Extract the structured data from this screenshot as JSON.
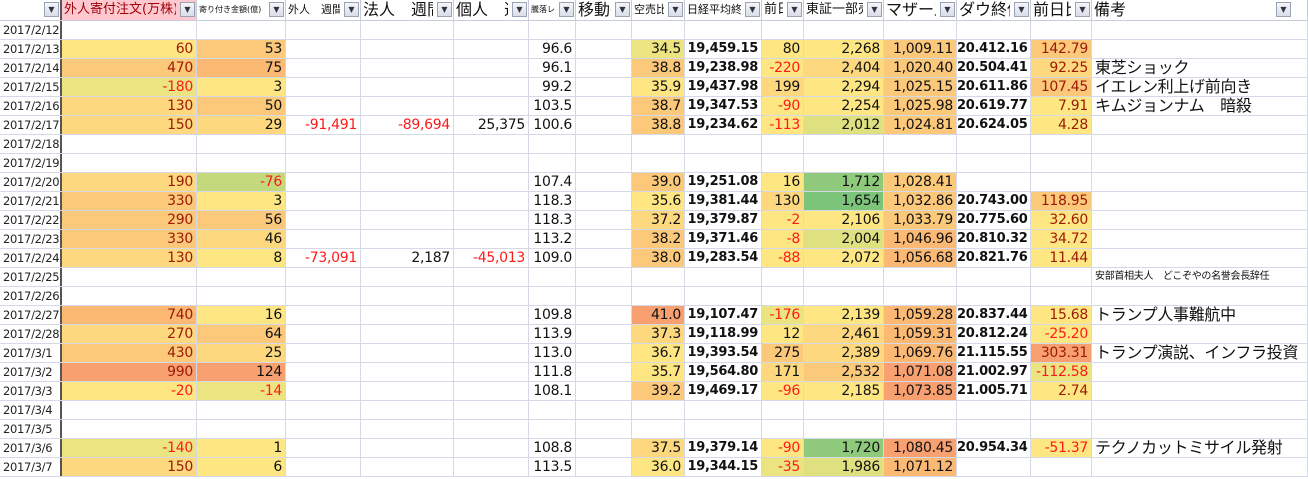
{
  "palette": {
    "Y": "#fee783",
    "YO": "#fdd87e",
    "O": "#fcc87a",
    "OO": "#fbb974",
    "R": "#f9a070",
    "YG": "#ece381",
    "YG2": "#dfe07f",
    "G1": "#c3d97c",
    "G2": "#8fca7c",
    "G3": "#7cc47a"
  },
  "text_colors": {
    "negative": "#ff1a1a",
    "highlight": "#9c1a06",
    "header_highlight_bg": "#ffc7ce"
  },
  "headers": [
    "",
    "外人寄付注文(万株)",
    "寄り付き金額(億)",
    "外人　週間差",
    "法人　週間",
    "個人　週",
    "騰落レシオ",
    "移動平",
    "空売比率",
    "日経平均終値",
    "前日",
    "東証一部売",
    "マザーズ",
    "ダウ終値",
    "前日比",
    "備考"
  ],
  "rows": [
    {
      "date": "2017/2/12",
      "cells": [
        "",
        "",
        "",
        "",
        "",
        "",
        "",
        "",
        "",
        "",
        "",
        "",
        "",
        "",
        ""
      ],
      "fills": [
        "",
        "",
        "",
        "",
        "",
        "",
        "",
        "",
        "",
        "",
        "",
        "",
        "",
        "",
        ""
      ]
    },
    {
      "date": "2017/2/13",
      "cells": [
        "60",
        "53",
        "",
        "",
        "",
        "96.6",
        "",
        "34.5",
        "19,459.15",
        "80",
        "2,268",
        "1,009.11",
        "20.412.16",
        "142.79",
        ""
      ],
      "fills": [
        "Y",
        "O",
        "",
        "",
        "",
        "",
        "",
        "YG",
        "",
        "Y",
        "Y",
        "O",
        "",
        "O",
        ""
      ]
    },
    {
      "date": "2017/2/14",
      "cells": [
        "470",
        "75",
        "",
        "",
        "",
        "96.1",
        "",
        "38.8",
        "19,238.98",
        "-220",
        "2,404",
        "1,020.40",
        "20.504.41",
        "92.25",
        "東芝ショック"
      ],
      "fills": [
        "O",
        "OO",
        "",
        "",
        "",
        "",
        "",
        "O",
        "",
        "Y",
        "YO",
        "O",
        "",
        "YO",
        ""
      ]
    },
    {
      "date": "2017/2/15",
      "cells": [
        "-180",
        "3",
        "",
        "",
        "",
        "99.2",
        "",
        "35.9",
        "19,437.98",
        "199",
        "2,294",
        "1,025.15",
        "20.611.86",
        "107.45",
        "イエレン利上げ前向き"
      ],
      "fills": [
        "YG",
        "Y",
        "",
        "",
        "",
        "",
        "",
        "Y",
        "",
        "YO",
        "Y",
        "O",
        "",
        "O",
        ""
      ]
    },
    {
      "date": "2017/2/16",
      "cells": [
        "130",
        "50",
        "",
        "",
        "",
        "103.5",
        "",
        "38.7",
        "19,347.53",
        "-90",
        "2,254",
        "1,025.98",
        "20.619.77",
        "7.91",
        "キムジョンナム　暗殺"
      ],
      "fills": [
        "YO",
        "O",
        "",
        "",
        "",
        "",
        "",
        "O",
        "",
        "Y",
        "Y",
        "O",
        "",
        "Y",
        ""
      ]
    },
    {
      "date": "2017/2/17",
      "cells": [
        "150",
        "29",
        "-91,491",
        "-89,694",
        "25,375",
        "100.6",
        "",
        "38.8",
        "19,234.62",
        "-113",
        "2,012",
        "1,024.81",
        "20.624.05",
        "4.28",
        ""
      ],
      "fills": [
        "YO",
        "YO",
        "",
        "",
        "",
        "",
        "",
        "O",
        "",
        "Y",
        "YG2",
        "O",
        "",
        "Y",
        ""
      ]
    },
    {
      "date": "2017/2/18",
      "cells": [
        "",
        "",
        "",
        "",
        "",
        "",
        "",
        "",
        "",
        "",
        "",
        "",
        "",
        "",
        ""
      ],
      "fills": [
        "",
        "",
        "",
        "",
        "",
        "",
        "",
        "",
        "",
        "",
        "",
        "",
        "",
        "",
        ""
      ]
    },
    {
      "date": "2017/2/19",
      "cells": [
        "",
        "",
        "",
        "",
        "",
        "",
        "",
        "",
        "",
        "",
        "",
        "",
        "",
        "",
        ""
      ],
      "fills": [
        "",
        "",
        "",
        "",
        "",
        "",
        "",
        "",
        "",
        "",
        "",
        "",
        "",
        "",
        ""
      ]
    },
    {
      "date": "2017/2/20",
      "cells": [
        "190",
        "-76",
        "",
        "",
        "",
        "107.4",
        "",
        "39.0",
        "19,251.08",
        "16",
        "1,712",
        "1,028.41",
        "",
        "",
        ""
      ],
      "fills": [
        "YO",
        "G1",
        "",
        "",
        "",
        "",
        "",
        "O",
        "",
        "Y",
        "G2",
        "O",
        "",
        "",
        ""
      ]
    },
    {
      "date": "2017/2/21",
      "cells": [
        "330",
        "3",
        "",
        "",
        "",
        "118.3",
        "",
        "35.6",
        "19,381.44",
        "130",
        "1,654",
        "1,032.86",
        "20.743.00",
        "118.95",
        ""
      ],
      "fills": [
        "O",
        "Y",
        "",
        "",
        "",
        "",
        "",
        "Y",
        "",
        "YO",
        "G3",
        "O",
        "",
        "O",
        ""
      ]
    },
    {
      "date": "2017/2/22",
      "cells": [
        "290",
        "56",
        "",
        "",
        "",
        "118.3",
        "",
        "37.2",
        "19,379.87",
        "-2",
        "2,106",
        "1,033.79",
        "20.775.60",
        "32.60",
        ""
      ],
      "fills": [
        "O",
        "O",
        "",
        "",
        "",
        "",
        "",
        "YO",
        "",
        "Y",
        "Y",
        "O",
        "",
        "Y",
        ""
      ]
    },
    {
      "date": "2017/2/23",
      "cells": [
        "330",
        "46",
        "",
        "",
        "",
        "113.2",
        "",
        "38.2",
        "19,371.46",
        "-8",
        "2,004",
        "1,046.96",
        "20.810.32",
        "34.72",
        ""
      ],
      "fills": [
        "O",
        "YO",
        "",
        "",
        "",
        "",
        "",
        "O",
        "",
        "Y",
        "YG2",
        "OO",
        "",
        "Y",
        ""
      ]
    },
    {
      "date": "2017/2/24",
      "cells": [
        "130",
        "8",
        "-73,091",
        "2,187",
        "-45,013",
        "109.0",
        "",
        "38.0",
        "19,283.54",
        "-88",
        "2,072",
        "1,056.68",
        "20.821.76",
        "11.44",
        ""
      ],
      "fills": [
        "YO",
        "Y",
        "",
        "",
        "",
        "",
        "",
        "O",
        "",
        "Y",
        "Y",
        "OO",
        "",
        "Y",
        ""
      ]
    },
    {
      "date": "2017/2/25",
      "cells": [
        "",
        "",
        "",
        "",
        "",
        "",
        "",
        "",
        "",
        "",
        "",
        "",
        "",
        "",
        "安部首相夫人　どこぞやの名誉会長辞任"
      ],
      "fills": [
        "",
        "",
        "",
        "",
        "",
        "",
        "",
        "",
        "",
        "",
        "",
        "",
        "",
        "",
        ""
      ]
    },
    {
      "date": "2017/2/26",
      "cells": [
        "",
        "",
        "",
        "",
        "",
        "",
        "",
        "",
        "",
        "",
        "",
        "",
        "",
        "",
        ""
      ],
      "fills": [
        "",
        "",
        "",
        "",
        "",
        "",
        "",
        "",
        "",
        "",
        "",
        "",
        "",
        "",
        ""
      ]
    },
    {
      "date": "2017/2/27",
      "cells": [
        "740",
        "16",
        "",
        "",
        "",
        "109.8",
        "",
        "41.0",
        "19,107.47",
        "-176",
        "2,139",
        "1,059.28",
        "20.837.44",
        "15.68",
        "トランプ人事難航中"
      ],
      "fills": [
        "OO",
        "Y",
        "",
        "",
        "",
        "",
        "",
        "R",
        "",
        "YG",
        "Y",
        "OO",
        "",
        "Y",
        ""
      ]
    },
    {
      "date": "2017/2/28",
      "cells": [
        "270",
        "64",
        "",
        "",
        "",
        "113.9",
        "",
        "37.3",
        "19,118.99",
        "12",
        "2,461",
        "1,059.31",
        "20.812.24",
        "-25.20",
        ""
      ],
      "fills": [
        "YO",
        "O",
        "",
        "",
        "",
        "",
        "",
        "YO",
        "",
        "Y",
        "YO",
        "OO",
        "",
        "Y",
        ""
      ]
    },
    {
      "date": "2017/3/1",
      "cells": [
        "430",
        "25",
        "",
        "",
        "",
        "113.0",
        "",
        "36.7",
        "19,393.54",
        "275",
        "2,389",
        "1,069.76",
        "21.115.55",
        "303.31",
        "トランプ演説、インフラ投資"
      ],
      "fills": [
        "O",
        "YO",
        "",
        "",
        "",
        "",
        "",
        "Y",
        "",
        "O",
        "YO",
        "OO",
        "",
        "R",
        ""
      ]
    },
    {
      "date": "2017/3/2",
      "cells": [
        "990",
        "124",
        "",
        "",
        "",
        "111.8",
        "",
        "35.7",
        "19,564.80",
        "171",
        "2,532",
        "1,071.08",
        "21.002.97",
        "-112.58",
        ""
      ],
      "fills": [
        "R",
        "R",
        "",
        "",
        "",
        "",
        "",
        "Y",
        "",
        "YO",
        "O",
        "R",
        "",
        "YG",
        ""
      ]
    },
    {
      "date": "2017/3/3",
      "cells": [
        "-20",
        "-14",
        "",
        "",
        "",
        "108.1",
        "",
        "39.2",
        "19,469.17",
        "-96",
        "2,185",
        "1,073.85",
        "21.005.71",
        "2.74",
        ""
      ],
      "fills": [
        "Y",
        "YG",
        "",
        "",
        "",
        "",
        "",
        "O",
        "",
        "Y",
        "Y",
        "R",
        "",
        "Y",
        ""
      ]
    },
    {
      "date": "2017/3/4",
      "cells": [
        "",
        "",
        "",
        "",
        "",
        "",
        "",
        "",
        "",
        "",
        "",
        "",
        "",
        "",
        ""
      ],
      "fills": [
        "",
        "",
        "",
        "",
        "",
        "",
        "",
        "",
        "",
        "",
        "",
        "",
        "",
        "",
        ""
      ]
    },
    {
      "date": "2017/3/5",
      "cells": [
        "",
        "",
        "",
        "",
        "",
        "",
        "",
        "",
        "",
        "",
        "",
        "",
        "",
        "",
        ""
      ],
      "fills": [
        "",
        "",
        "",
        "",
        "",
        "",
        "",
        "",
        "",
        "",
        "",
        "",
        "",
        "",
        ""
      ]
    },
    {
      "date": "2017/3/6",
      "cells": [
        "-140",
        "1",
        "",
        "",
        "",
        "108.8",
        "",
        "37.5",
        "19,379.14",
        "-90",
        "1,720",
        "1,080.45",
        "20.954.34",
        "-51.37",
        "テクノカットミサイル発射"
      ],
      "fills": [
        "YG",
        "Y",
        "",
        "",
        "",
        "",
        "",
        "YO",
        "",
        "Y",
        "G2",
        "R",
        "",
        "Y",
        ""
      ]
    },
    {
      "date": "2017/3/7",
      "cells": [
        "150",
        "6",
        "",
        "",
        "",
        "113.5",
        "",
        "36.0",
        "19,344.15",
        "-35",
        "1,986",
        "1,071.12",
        "",
        "",
        ""
      ],
      "fills": [
        "YO",
        "Y",
        "",
        "",
        "",
        "",
        "",
        "Y",
        "",
        "YG",
        "YG2",
        "OO",
        "",
        "",
        ""
      ]
    }
  ]
}
